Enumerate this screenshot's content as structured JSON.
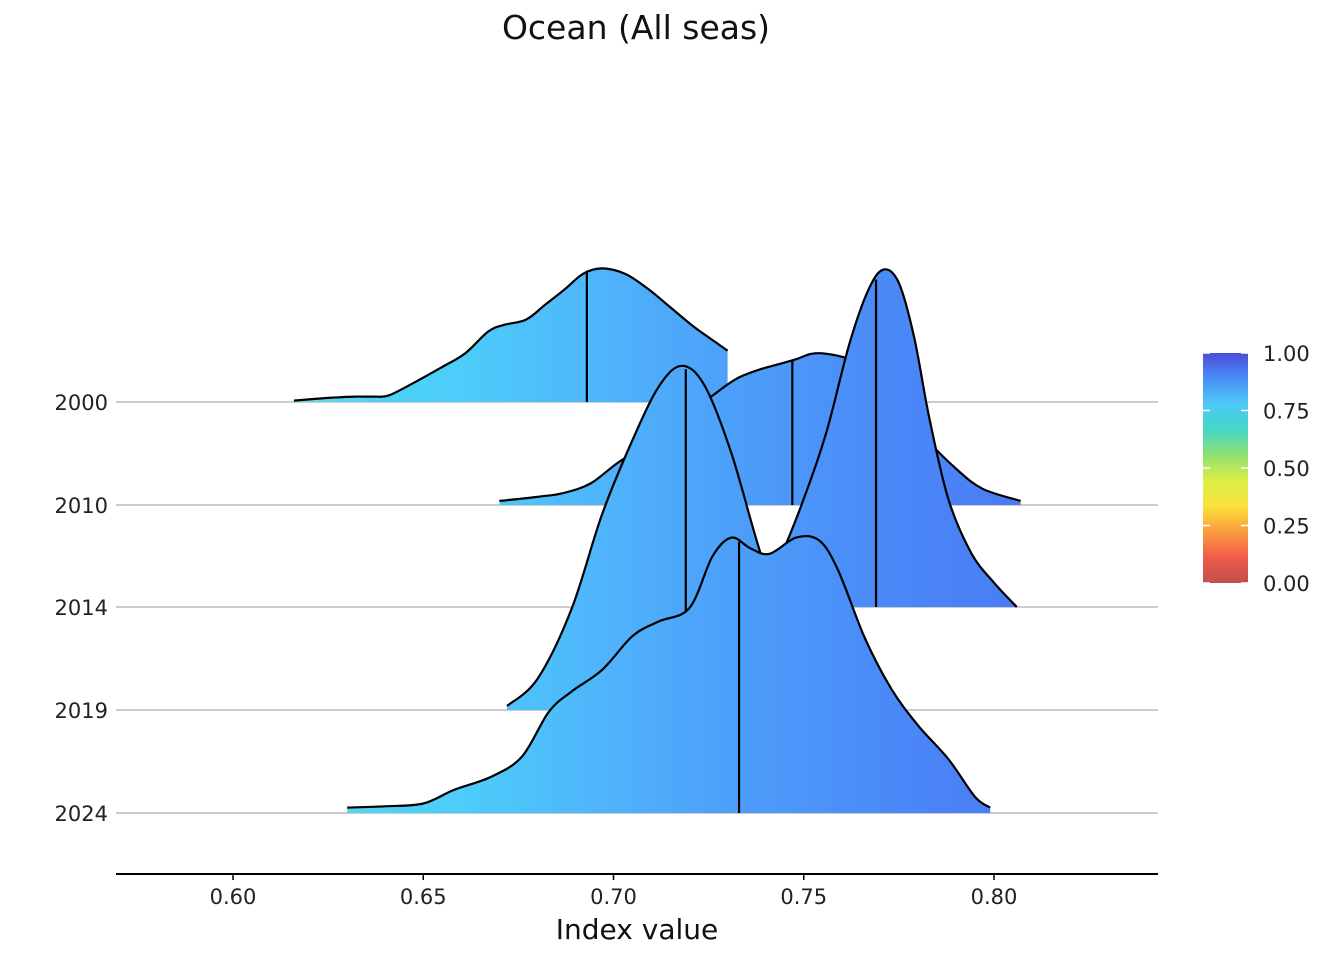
{
  "chart_data": {
    "type": "ridgeline",
    "title": "Ocean (All seas)",
    "xlabel": "Index value",
    "ylabel": "",
    "xlim": [
      0.568,
      0.843
    ],
    "x_ticks": [
      "0.60",
      "0.65",
      "0.70",
      "0.75",
      "0.80"
    ],
    "x_tick_values": [
      0.6,
      0.65,
      0.7,
      0.75,
      0.8
    ],
    "categories": [
      "2000",
      "2010",
      "2014",
      "2019",
      "2024"
    ],
    "grid": "horizontal baselines",
    "series": [
      {
        "name": "2000",
        "median": 0.693,
        "range": [
          0.616,
          0.73
        ],
        "density": [
          [
            0.616,
            0.01
          ],
          [
            0.625,
            0.03
          ],
          [
            0.632,
            0.04
          ],
          [
            0.637,
            0.04
          ],
          [
            0.641,
            0.05
          ],
          [
            0.648,
            0.15
          ],
          [
            0.655,
            0.26
          ],
          [
            0.661,
            0.36
          ],
          [
            0.667,
            0.52
          ],
          [
            0.671,
            0.57
          ],
          [
            0.677,
            0.61
          ],
          [
            0.682,
            0.72
          ],
          [
            0.687,
            0.83
          ],
          [
            0.692,
            0.95
          ],
          [
            0.697,
            0.99
          ],
          [
            0.703,
            0.95
          ],
          [
            0.709,
            0.84
          ],
          [
            0.715,
            0.7
          ],
          [
            0.721,
            0.56
          ],
          [
            0.727,
            0.44
          ],
          [
            0.73,
            0.38
          ]
        ]
      },
      {
        "name": "2010",
        "median": 0.747,
        "range": [
          0.67,
          0.807
        ],
        "density": [
          [
            0.67,
            0.03
          ],
          [
            0.68,
            0.06
          ],
          [
            0.687,
            0.09
          ],
          [
            0.694,
            0.16
          ],
          [
            0.701,
            0.31
          ],
          [
            0.71,
            0.48
          ],
          [
            0.718,
            0.66
          ],
          [
            0.725,
            0.79
          ],
          [
            0.732,
            0.93
          ],
          [
            0.738,
            1.0
          ],
          [
            0.743,
            1.04
          ],
          [
            0.748,
            1.08
          ],
          [
            0.752,
            1.12
          ],
          [
            0.756,
            1.12
          ],
          [
            0.762,
            1.08
          ],
          [
            0.768,
            0.98
          ],
          [
            0.775,
            0.8
          ],
          [
            0.782,
            0.5
          ],
          [
            0.79,
            0.27
          ],
          [
            0.797,
            0.12
          ],
          [
            0.807,
            0.03
          ]
        ]
      },
      {
        "name": "2014",
        "median": 0.769,
        "range": [
          0.738,
          0.806
        ],
        "density": [
          [
            0.738,
            0.05
          ],
          [
            0.744,
            0.38
          ],
          [
            0.75,
            0.8
          ],
          [
            0.756,
            1.3
          ],
          [
            0.762,
            1.95
          ],
          [
            0.767,
            2.35
          ],
          [
            0.771,
            2.5
          ],
          [
            0.775,
            2.4
          ],
          [
            0.779,
            2.0
          ],
          [
            0.783,
            1.4
          ],
          [
            0.788,
            0.8
          ],
          [
            0.794,
            0.4
          ],
          [
            0.8,
            0.18
          ],
          [
            0.806,
            0.0
          ]
        ]
      },
      {
        "name": "2019",
        "median": 0.719,
        "range": [
          0.672,
          0.774
        ],
        "density": [
          [
            0.672,
            0.03
          ],
          [
            0.68,
            0.23
          ],
          [
            0.689,
            0.75
          ],
          [
            0.697,
            1.45
          ],
          [
            0.705,
            2.0
          ],
          [
            0.712,
            2.4
          ],
          [
            0.718,
            2.55
          ],
          [
            0.724,
            2.4
          ],
          [
            0.731,
            1.9
          ],
          [
            0.738,
            1.22
          ],
          [
            0.745,
            0.62
          ],
          [
            0.752,
            0.24
          ],
          [
            0.76,
            0.08
          ],
          [
            0.774,
            0.0
          ]
        ]
      },
      {
        "name": "2024",
        "median": 0.733,
        "range": [
          0.63,
          0.799
        ],
        "density": [
          [
            0.63,
            0.04
          ],
          [
            0.64,
            0.05
          ],
          [
            0.65,
            0.07
          ],
          [
            0.658,
            0.17
          ],
          [
            0.668,
            0.27
          ],
          [
            0.676,
            0.42
          ],
          [
            0.683,
            0.75
          ],
          [
            0.689,
            0.9
          ],
          [
            0.697,
            1.06
          ],
          [
            0.705,
            1.31
          ],
          [
            0.712,
            1.42
          ],
          [
            0.72,
            1.52
          ],
          [
            0.726,
            1.9
          ],
          [
            0.731,
            2.04
          ],
          [
            0.736,
            1.96
          ],
          [
            0.741,
            1.92
          ],
          [
            0.748,
            2.04
          ],
          [
            0.754,
            2.02
          ],
          [
            0.759,
            1.8
          ],
          [
            0.766,
            1.3
          ],
          [
            0.773,
            0.92
          ],
          [
            0.78,
            0.65
          ],
          [
            0.788,
            0.4
          ],
          [
            0.795,
            0.12
          ],
          [
            0.799,
            0.04
          ]
        ]
      }
    ],
    "legend": {
      "placement": "right",
      "range": [
        0,
        1
      ],
      "ticks": [
        "0.00",
        "0.25",
        "0.50",
        "0.75",
        "1.00"
      ],
      "tick_values": [
        0.0,
        0.25,
        0.5,
        0.75,
        1.0
      ],
      "colors": [
        "#c0504d",
        "#f25a4a",
        "#fb9b3e",
        "#f9e13a",
        "#dcef45",
        "#8fe070",
        "#46d6c8",
        "#4dc9f6",
        "#4a8ef7",
        "#4b4ed8"
      ]
    }
  }
}
